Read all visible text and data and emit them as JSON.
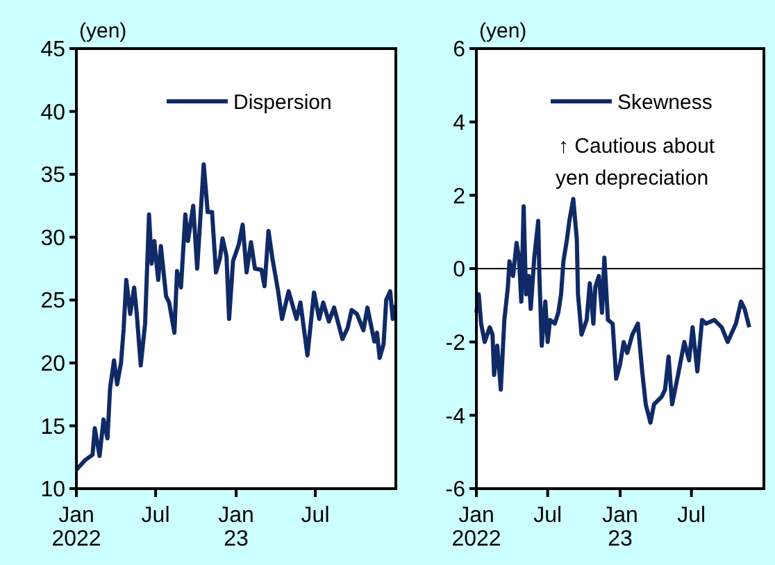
{
  "chart_data": [
    {
      "type": "line",
      "ylabel": "(yen)",
      "legend": "top",
      "xlim": [
        "2022-01-01",
        "2024-01-01"
      ],
      "ylim": [
        10,
        45
      ],
      "yticks": [
        10,
        15,
        20,
        25,
        30,
        35,
        40,
        45
      ],
      "xticks": [
        {
          "value": "2022-01-01",
          "label": "Jan\n2022"
        },
        {
          "value": "2022-07-01",
          "label": "Jul"
        },
        {
          "value": "2023-01-01",
          "label": "Jan\n23"
        },
        {
          "value": "2023-07-01",
          "label": "Jul"
        }
      ],
      "series": [
        {
          "name": "Dispersion",
          "color": "#0f2a66",
          "x": [
            "2022-01-01",
            "2022-01-22",
            "2022-02-07",
            "2022-02-12",
            "2022-02-23",
            "2022-03-04",
            "2022-03-13",
            "2022-03-19",
            "2022-03-28",
            "2022-04-04",
            "2022-04-13",
            "2022-04-19",
            "2022-04-25",
            "2022-05-04",
            "2022-05-13",
            "2022-05-19",
            "2022-05-28",
            "2022-06-07",
            "2022-06-16",
            "2022-06-22",
            "2022-06-28",
            "2022-07-07",
            "2022-07-13",
            "2022-07-25",
            "2022-08-01",
            "2022-08-13",
            "2022-08-19",
            "2022-08-28",
            "2022-09-07",
            "2022-09-13",
            "2022-09-25",
            "2022-10-04",
            "2022-10-10",
            "2022-10-19",
            "2022-10-28",
            "2022-11-07",
            "2022-11-16",
            "2022-11-25",
            "2022-12-01",
            "2022-12-10",
            "2022-12-16",
            "2022-12-25",
            "2023-01-07",
            "2023-01-16",
            "2023-01-25",
            "2023-02-04",
            "2023-02-13",
            "2023-02-28",
            "2023-03-07",
            "2023-03-16",
            "2023-03-25",
            "2023-04-07",
            "2023-04-16",
            "2023-05-01",
            "2023-05-19",
            "2023-05-28",
            "2023-06-13",
            "2023-06-28",
            "2023-07-10",
            "2023-07-19",
            "2023-08-01",
            "2023-08-13",
            "2023-09-01",
            "2023-09-13",
            "2023-09-22",
            "2023-10-04",
            "2023-10-19",
            "2023-10-28",
            "2023-11-13",
            "2023-11-19",
            "2023-11-25",
            "2023-12-04",
            "2023-12-10",
            "2023-12-19",
            "2023-12-25",
            "2023-12-31"
          ],
          "values": [
            11.5,
            12.3,
            12.7,
            14.8,
            12.6,
            15.5,
            14,
            18,
            20.2,
            18.3,
            20,
            22.7,
            26.6,
            23.9,
            26,
            23.9,
            19.8,
            23.1,
            31.8,
            27.9,
            29.7,
            26.6,
            29.3,
            25.3,
            24.8,
            22.4,
            27.3,
            26,
            31.8,
            29.7,
            32.5,
            27.5,
            30.8,
            35.8,
            32,
            32,
            27.2,
            28.3,
            29.9,
            28.5,
            23.5,
            28.1,
            29.4,
            31,
            27.2,
            29.6,
            27.5,
            27.4,
            26.1,
            30.5,
            28.3,
            25.7,
            23.5,
            25.7,
            23.5,
            24.8,
            20.6,
            25.6,
            23.5,
            24.8,
            23.3,
            24.4,
            21.9,
            22.8,
            24.2,
            23.9,
            22.6,
            24.4,
            21.7,
            22.4,
            20.4,
            21.5,
            25,
            25.7,
            23.5,
            24.6
          ]
        }
      ]
    },
    {
      "type": "line",
      "ylabel": "(yen)",
      "legend": "top",
      "xlim": [
        "2022-01-01",
        "2024-01-01"
      ],
      "ylim": [
        -6,
        6
      ],
      "yticks": [
        -6,
        -4,
        -2,
        0,
        2,
        4,
        6
      ],
      "xticks": [
        {
          "value": "2022-01-01",
          "label": "Jan\n2022"
        },
        {
          "value": "2022-07-01",
          "label": "Jul"
        },
        {
          "value": "2023-01-01",
          "label": "Jan\n23"
        },
        {
          "value": "2023-07-01",
          "label": "Jul"
        }
      ],
      "ref_lines": [
        {
          "axis": "y",
          "value": 0,
          "color": "#000000"
        }
      ],
      "annotations": [
        "↑ Cautious about\nyen depreciation"
      ],
      "series": [
        {
          "name": "Skewness",
          "color": "#0f2a66",
          "x": [
            "2022-01-01",
            "2022-01-07",
            "2022-01-13",
            "2022-01-22",
            "2022-02-04",
            "2022-02-11",
            "2022-02-15",
            "2022-02-23",
            "2022-03-04",
            "2022-03-13",
            "2022-03-22",
            "2022-03-26",
            "2022-04-04",
            "2022-04-13",
            "2022-04-19",
            "2022-04-25",
            "2022-05-01",
            "2022-05-07",
            "2022-05-14",
            "2022-05-19",
            "2022-05-28",
            "2022-06-07",
            "2022-06-10",
            "2022-06-16",
            "2022-06-25",
            "2022-07-01",
            "2022-07-07",
            "2022-07-19",
            "2022-07-28",
            "2022-08-04",
            "2022-08-10",
            "2022-08-19",
            "2022-08-25",
            "2022-09-04",
            "2022-09-13",
            "2022-09-16",
            "2022-09-25",
            "2022-10-08",
            "2022-10-16",
            "2022-10-25",
            "2022-10-30",
            "2022-11-08",
            "2022-11-16",
            "2022-11-22",
            "2022-12-01",
            "2022-12-13",
            "2022-12-22",
            "2023-01-01",
            "2023-01-10",
            "2023-01-19",
            "2023-02-01",
            "2023-02-15",
            "2023-02-26",
            "2023-03-07",
            "2023-03-19",
            "2023-03-28",
            "2023-04-16",
            "2023-04-25",
            "2023-05-04",
            "2023-05-13",
            "2023-05-28",
            "2023-06-13",
            "2023-06-25",
            "2023-07-04",
            "2023-07-16",
            "2023-07-28",
            "2023-08-07",
            "2023-08-28",
            "2023-09-16",
            "2023-10-01",
            "2023-10-22",
            "2023-11-04",
            "2023-11-13",
            "2023-11-25"
          ],
          "values": [
            -1.2,
            -0.7,
            -1.5,
            -2,
            -1.6,
            -1.8,
            -2.9,
            -2.1,
            -3.3,
            -1.4,
            -0.5,
            0.2,
            -0.2,
            0.7,
            0.3,
            -0.9,
            1.7,
            -0.7,
            -0.2,
            -1.1,
            0.3,
            1.3,
            -0.2,
            -2.1,
            -0.9,
            -2,
            -1.4,
            -1.5,
            -1.2,
            -0.7,
            0.2,
            0.8,
            1.3,
            1.9,
            0.8,
            -0.7,
            -1.8,
            -1.4,
            -0.4,
            -1.5,
            -0.5,
            -0.2,
            -1.2,
            0.3,
            -1.4,
            -1.5,
            -3,
            -2.6,
            -2,
            -2.3,
            -1.8,
            -1.5,
            -2.8,
            -3.7,
            -4.2,
            -3.7,
            -3.5,
            -3.3,
            -2.4,
            -3.7,
            -2.9,
            -2,
            -2.5,
            -1.6,
            -2.8,
            -1.4,
            -1.5,
            -1.4,
            -1.6,
            -2,
            -1.5,
            -0.9,
            -1.1,
            -1.6
          ]
        }
      ]
    }
  ]
}
